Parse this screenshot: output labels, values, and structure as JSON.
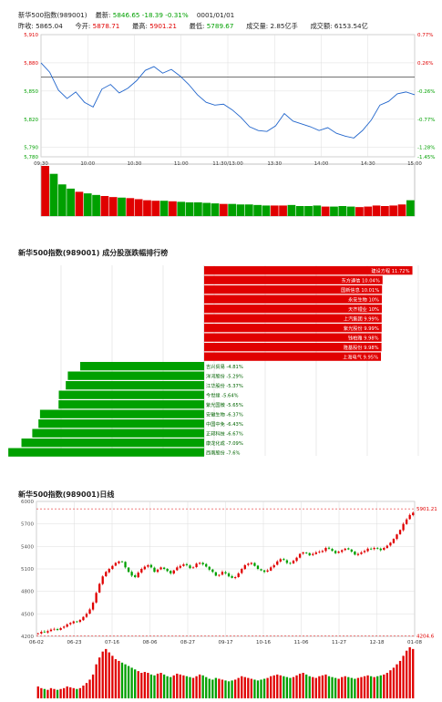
{
  "header": {
    "name": "新华500指数(989001)",
    "latest_label": "最新:",
    "latest_value": "5846.65",
    "change": "-18.39",
    "change_pct": "-0.31%",
    "date": "0001/01/01",
    "prev_close_label": "昨收:",
    "prev_close": "5865.04",
    "open_label": "今开:",
    "open": "5878.71",
    "high_label": "最高:",
    "high": "5901.21",
    "low_label": "最低:",
    "low": "5789.67",
    "volume_label": "成交量:",
    "volume": "2.85亿手",
    "amount_label": "成交额:",
    "amount": "6153.54亿"
  },
  "colors": {
    "up": "#e00000",
    "down": "#00a000",
    "line": "#2266cc",
    "grid": "#dddddd"
  },
  "chart_data": [
    {
      "type": "line",
      "name": "intraday",
      "prev_close": 5865.04,
      "ylim": [
        5780,
        5910
      ],
      "left_ticks": [
        "5,910",
        "5,880",
        "5,850",
        "5,820",
        "5,790",
        "5,780"
      ],
      "right_ticks": [
        "0.77%",
        "0.26%",
        "-0.26%",
        "-0.77%",
        "-1.28%",
        "-1.45%"
      ],
      "x_ticks": [
        "09:30",
        "10:00",
        "10:30",
        "11:00",
        "11:30/13:00",
        "13:30",
        "14:00",
        "14:30",
        "15:00"
      ],
      "price": [
        5880,
        5870,
        5851,
        5842,
        5849,
        5838,
        5833,
        5852,
        5857,
        5848,
        5853,
        5861,
        5872,
        5876,
        5869,
        5873,
        5866,
        5857,
        5846,
        5838,
        5835,
        5836,
        5830,
        5822,
        5812,
        5808,
        5807,
        5813,
        5826,
        5818,
        5815,
        5812,
        5808,
        5811,
        5805,
        5802,
        5800,
        5808,
        5819,
        5835,
        5839,
        5847,
        5849,
        5846
      ],
      "volume": [
        95,
        80,
        60,
        52,
        46,
        43,
        40,
        38,
        36,
        35,
        34,
        32,
        30,
        29,
        29,
        28,
        27,
        26,
        26,
        25,
        24,
        23,
        23,
        22,
        22,
        21,
        20,
        20,
        20,
        21,
        19,
        19,
        20,
        18,
        18,
        19,
        18,
        17,
        18,
        20,
        19,
        20,
        22,
        30
      ]
    },
    {
      "type": "bar",
      "name": "成分股涨跌幅排行榜",
      "title": "新华500指数(989001) 成分股涨跌幅排行榜",
      "categories": [
        "建设方程",
        "东方通信",
        "国新信息",
        "永安生物",
        "天齐锂业",
        "上汽集团",
        "紫光股份",
        "钱柏雅",
        "隆基股份",
        "上海电气",
        "吉兴贸易",
        "洋河股份",
        "江华股份",
        "今世缘",
        "紫光国微",
        "安徽生物",
        "中国中免",
        "正邦科技",
        "康龙化成",
        "西南股份"
      ],
      "values": [
        11.72,
        10.04,
        10.01,
        10,
        10,
        9.99,
        9.99,
        9.98,
        9.98,
        9.95,
        -4.81,
        -5.29,
        -5.37,
        -5.64,
        -5.65,
        -6.37,
        -6.43,
        -6.67,
        -7.09,
        -7.6
      ],
      "labels": [
        "建设方程 11.72%",
        "东方通信 10.04%",
        "国新信息 10.01%",
        "永安生物 10%",
        "天齐锂业 10%",
        "上汽集团 9.99%",
        "紫光股份 9.99%",
        "钱柏雅 9.98%",
        "隆基股份 9.98%",
        "上海电气 9.95%",
        "吉兴贸易 -4.81%",
        "洋河股份 -5.29%",
        "江华股份 -5.37%",
        "今世缘 -5.64%",
        "紫光国微 -5.65%",
        "安徽生物 -6.37%",
        "中国中免 -6.43%",
        "正邦科技 -6.67%",
        "康龙化成 -7.09%",
        "西南股份 -7.6%"
      ]
    },
    {
      "type": "candlestick",
      "name": "daily",
      "title": "新华500指数(989001)日线",
      "ylim": [
        4200,
        6000
      ],
      "y_ticks": [
        "6000",
        "5700",
        "5400",
        "5100",
        "4800",
        "4500",
        "4200"
      ],
      "x_ticks": [
        "06-02",
        "06-23",
        "07-16",
        "08-06",
        "08-27",
        "09-17",
        "10-16",
        "11-06",
        "11-27",
        "12-18",
        "01-08"
      ],
      "high_line": "5901.21",
      "low_line": "4204.6",
      "closes": [
        4240,
        4260,
        4255,
        4270,
        4290,
        4300,
        4285,
        4310,
        4330,
        4360,
        4380,
        4400,
        4390,
        4420,
        4460,
        4500,
        4560,
        4650,
        4780,
        4900,
        5000,
        5060,
        5100,
        5140,
        5180,
        5200,
        5190,
        5120,
        5060,
        5010,
        4990,
        5050,
        5100,
        5130,
        5150,
        5120,
        5060,
        5090,
        5120,
        5100,
        5070,
        5040,
        5080,
        5120,
        5140,
        5160,
        5150,
        5110,
        5120,
        5170,
        5180,
        5160,
        5130,
        5090,
        5060,
        5010,
        5020,
        5060,
        5040,
        5000,
        4980,
        4990,
        5040,
        5100,
        5150,
        5170,
        5180,
        5140,
        5100,
        5080,
        5060,
        5080,
        5120,
        5150,
        5200,
        5230,
        5220,
        5180,
        5170,
        5210,
        5250,
        5300,
        5320,
        5310,
        5280,
        5300,
        5320,
        5330,
        5340,
        5380,
        5370,
        5340,
        5310,
        5330,
        5350,
        5370,
        5360,
        5330,
        5290,
        5300,
        5320,
        5340,
        5370,
        5360,
        5380,
        5370,
        5350,
        5380,
        5410,
        5450,
        5500,
        5560,
        5620,
        5700,
        5760,
        5820,
        5850
      ],
      "volumes": [
        14,
        12,
        11,
        10,
        12,
        11,
        10,
        11,
        12,
        14,
        13,
        12,
        11,
        12,
        15,
        18,
        22,
        28,
        40,
        48,
        55,
        58,
        54,
        50,
        46,
        44,
        42,
        40,
        38,
        36,
        34,
        32,
        30,
        31,
        30,
        28,
        27,
        29,
        30,
        28,
        26,
        25,
        27,
        29,
        28,
        27,
        26,
        25,
        24,
        26,
        28,
        27,
        25,
        23,
        22,
        24,
        23,
        22,
        21,
        20,
        21,
        22,
        24,
        26,
        25,
        24,
        23,
        22,
        21,
        22,
        23,
        24,
        26,
        27,
        28,
        27,
        26,
        25,
        24,
        25,
        27,
        29,
        30,
        28,
        26,
        25,
        24,
        26,
        27,
        28,
        26,
        25,
        24,
        23,
        25,
        26,
        25,
        24,
        23,
        24,
        25,
        26,
        27,
        26,
        25,
        26,
        27,
        28,
        30,
        33,
        36,
        40,
        44,
        50,
        56,
        60,
        58
      ]
    }
  ]
}
